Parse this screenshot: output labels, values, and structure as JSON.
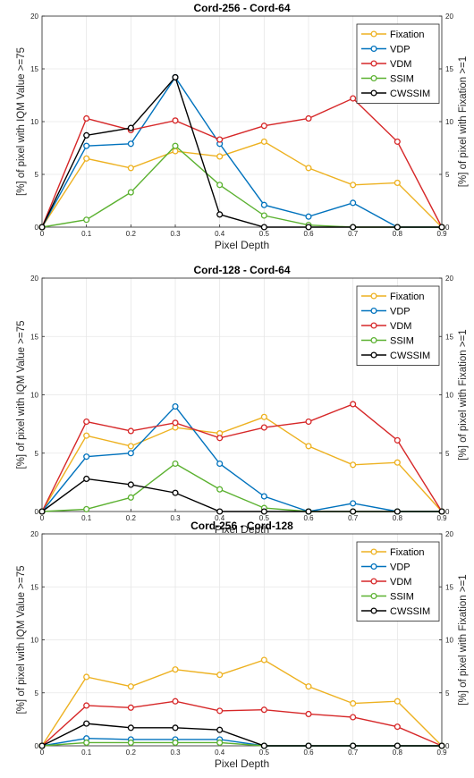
{
  "chart_data": [
    {
      "type": "line",
      "title": "Cord-256 - Cord-64",
      "xlabel": "Pixel Depth",
      "ylabel": "[%] of pixel with IQM Value >=75",
      "y2label": "[%] of pixel with  Fixation >=1",
      "x": [
        0,
        0.1,
        0.2,
        0.3,
        0.4,
        0.5,
        0.6,
        0.7,
        0.8,
        0.9
      ],
      "xticks": [
        "0",
        "0.1",
        "0.2",
        "0.3",
        "0.4",
        "0.5",
        "0.6",
        "0.7",
        "0.8",
        "0.9"
      ],
      "ylim": [
        0,
        20
      ],
      "yticks": [
        "0",
        "5",
        "10",
        "15",
        "20"
      ],
      "y2lim": [
        0,
        20
      ],
      "y2ticks": [
        "0",
        "5",
        "10",
        "15",
        "20"
      ],
      "grid": true,
      "legend_position": "top-right",
      "series": [
        {
          "name": "Fixation",
          "color": "#EDB120",
          "values": [
            0,
            6.5,
            5.6,
            7.2,
            6.7,
            8.1,
            5.6,
            4.0,
            4.2,
            0
          ]
        },
        {
          "name": "VDP",
          "color": "#0072BD",
          "values": [
            0,
            7.7,
            7.9,
            14.2,
            7.9,
            2.1,
            1.0,
            2.3,
            0,
            0
          ]
        },
        {
          "name": "VDM",
          "color": "#D62728",
          "values": [
            0,
            10.3,
            9.2,
            10.1,
            8.3,
            9.6,
            10.3,
            12.2,
            8.1,
            0
          ]
        },
        {
          "name": "SSIM",
          "color": "#5BB130",
          "values": [
            0,
            0.7,
            3.3,
            7.7,
            4.0,
            1.1,
            0.2,
            0,
            0,
            0
          ]
        },
        {
          "name": "CWSSIM",
          "color": "#000000",
          "values": [
            0,
            8.7,
            9.4,
            14.2,
            1.2,
            0,
            0,
            0,
            0,
            0
          ]
        }
      ]
    },
    {
      "type": "line",
      "title": "Cord-128 - Cord-64",
      "xlabel": "Pixel Depth",
      "ylabel": "[%] of pixel with IQM Value >=75",
      "y2label": "[%] of pixel with  Fixation >=1",
      "x": [
        0,
        0.1,
        0.2,
        0.3,
        0.4,
        0.5,
        0.6,
        0.7,
        0.8,
        0.9
      ],
      "xticks": [
        "0",
        "0.1",
        "0.2",
        "0.3",
        "0.4",
        "0.5",
        "0.6",
        "0.7",
        "0.8",
        "0.9"
      ],
      "ylim": [
        0,
        20
      ],
      "yticks": [
        "0",
        "5",
        "10",
        "15",
        "20"
      ],
      "y2lim": [
        0,
        20
      ],
      "y2ticks": [
        "0",
        "5",
        "10",
        "15",
        "20"
      ],
      "grid": true,
      "legend_position": "top-right",
      "series": [
        {
          "name": "Fixation",
          "color": "#EDB120",
          "values": [
            0,
            6.5,
            5.6,
            7.2,
            6.7,
            8.1,
            5.6,
            4.0,
            4.2,
            0
          ]
        },
        {
          "name": "VDP",
          "color": "#0072BD",
          "values": [
            0,
            4.7,
            5.0,
            9.0,
            4.1,
            1.3,
            0,
            0.7,
            0,
            0
          ]
        },
        {
          "name": "VDM",
          "color": "#D62728",
          "values": [
            0,
            7.7,
            6.9,
            7.6,
            6.3,
            7.2,
            7.7,
            9.2,
            6.1,
            0
          ]
        },
        {
          "name": "SSIM",
          "color": "#5BB130",
          "values": [
            0,
            0.2,
            1.2,
            4.1,
            1.9,
            0.3,
            0,
            0,
            0,
            0
          ]
        },
        {
          "name": "CWSSIM",
          "color": "#000000",
          "values": [
            0,
            2.8,
            2.3,
            1.6,
            0,
            0,
            0,
            0,
            0,
            0
          ]
        }
      ]
    },
    {
      "type": "line",
      "title": "Cord-256 - Cord-128",
      "xlabel": "Pixel Depth",
      "ylabel": "[%] of pixel with IQM Value >=75",
      "y2label": "[%] of pixel with  Fixation >=1",
      "x": [
        0,
        0.1,
        0.2,
        0.3,
        0.4,
        0.5,
        0.6,
        0.7,
        0.8,
        0.9
      ],
      "xticks": [
        "0",
        "0.1",
        "0.2",
        "0.3",
        "0.4",
        "0.5",
        "0.6",
        "0.7",
        "0.8",
        "0.9"
      ],
      "ylim": [
        0,
        20
      ],
      "yticks": [
        "0",
        "5",
        "10",
        "15",
        "20"
      ],
      "y2lim": [
        0,
        20
      ],
      "y2ticks": [
        "0",
        "5",
        "10",
        "15",
        "20"
      ],
      "grid": true,
      "legend_position": "top-right",
      "series": [
        {
          "name": "Fixation",
          "color": "#EDB120",
          "values": [
            0,
            6.5,
            5.6,
            7.2,
            6.7,
            8.1,
            5.6,
            4.0,
            4.2,
            0
          ]
        },
        {
          "name": "VDP",
          "color": "#0072BD",
          "values": [
            0,
            0.7,
            0.6,
            0.6,
            0.6,
            0,
            0,
            0,
            0,
            0
          ]
        },
        {
          "name": "VDM",
          "color": "#D62728",
          "values": [
            0,
            3.8,
            3.6,
            4.2,
            3.3,
            3.4,
            3.0,
            2.7,
            1.8,
            0
          ]
        },
        {
          "name": "SSIM",
          "color": "#5BB130",
          "values": [
            0,
            0.3,
            0.3,
            0.3,
            0.3,
            0,
            0,
            0,
            0,
            0
          ]
        },
        {
          "name": "CWSSIM",
          "color": "#000000",
          "values": [
            0,
            2.1,
            1.7,
            1.7,
            1.5,
            0,
            0,
            0,
            0,
            0
          ]
        }
      ]
    }
  ]
}
